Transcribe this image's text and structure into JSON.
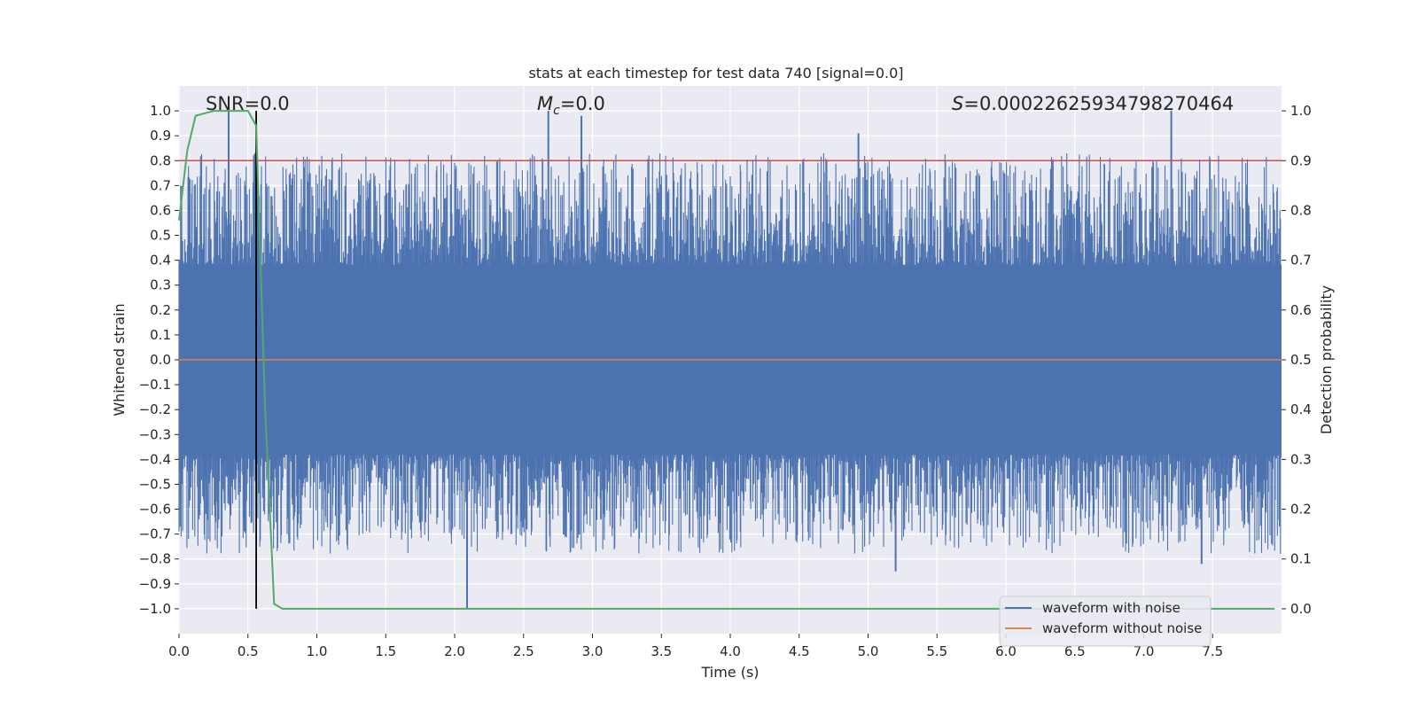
{
  "chart_data": {
    "type": "line",
    "title": "stats at each timestep for test data 740 [signal=0.0]",
    "xlabel": "Time (s)",
    "ylabel": "Whitened strain",
    "y2label": "Detection probability",
    "xlim": [
      0.0,
      8.0
    ],
    "ylim": [
      -1.1,
      1.1
    ],
    "y2lim": [
      -0.05,
      1.05
    ],
    "xticks": [
      "0.0",
      "0.5",
      "1.0",
      "1.5",
      "2.0",
      "2.5",
      "3.0",
      "3.5",
      "4.0",
      "4.5",
      "5.0",
      "5.5",
      "6.0",
      "6.5",
      "7.0",
      "7.5"
    ],
    "yticks": [
      "1.0",
      "0.9",
      "0.8",
      "0.7",
      "0.6",
      "0.5",
      "0.4",
      "0.3",
      "0.2",
      "0.1",
      "0.0",
      "-0.1",
      "-0.2",
      "-0.3",
      "-0.4",
      "-0.5",
      "-0.6",
      "-0.7",
      "-0.8",
      "-0.9",
      "-1.0"
    ],
    "y2ticks": [
      "1.0",
      "0.9",
      "0.8",
      "0.7",
      "0.6",
      "0.5",
      "0.4",
      "0.3",
      "0.2",
      "0.1",
      "0.0"
    ],
    "annotations": {
      "snr": "SNR=0.0",
      "mc_symbol": "M",
      "mc_sub": "c",
      "mc_value": "=0.0",
      "s_symbol": "S",
      "s_value": "=0.00022625934798270464"
    },
    "threshold": 0.9,
    "marker_time": 0.56,
    "series": [
      {
        "name": "waveform with noise",
        "color": "#4c72b0",
        "axis": "left",
        "noise_amplitude_approx": [
          -1.0,
          1.0
        ],
        "peaks": [
          {
            "x": 0.36,
            "y": 1.0
          },
          {
            "x": 2.68,
            "y": 1.0
          },
          {
            "x": 2.92,
            "y": 0.98
          },
          {
            "x": 7.2,
            "y": 1.0
          },
          {
            "x": 4.93,
            "y": 0.91
          },
          {
            "x": 2.09,
            "y": -1.0
          },
          {
            "x": 5.2,
            "y": -0.85
          },
          {
            "x": 7.42,
            "y": -0.82
          }
        ]
      },
      {
        "name": "waveform without noise",
        "color": "#dd8452",
        "axis": "left",
        "x": [
          0.0,
          8.0
        ],
        "y": [
          0.0,
          0.0
        ]
      },
      {
        "name": "detection probability",
        "color": "#55a868",
        "axis": "right",
        "x": [
          0.0,
          0.06,
          0.12,
          0.25,
          0.375,
          0.5,
          0.56,
          0.625,
          0.69,
          0.75,
          1.0,
          8.0
        ],
        "y": [
          0.78,
          0.92,
          0.99,
          1.0,
          1.0,
          1.0,
          0.97,
          0.4,
          0.01,
          0.0,
          0.0,
          0.0
        ]
      }
    ],
    "legend": {
      "position": "lower-right",
      "items": [
        {
          "label": "waveform with noise",
          "color": "#4c72b0"
        },
        {
          "label": "waveform without noise",
          "color": "#dd8452"
        }
      ]
    }
  }
}
